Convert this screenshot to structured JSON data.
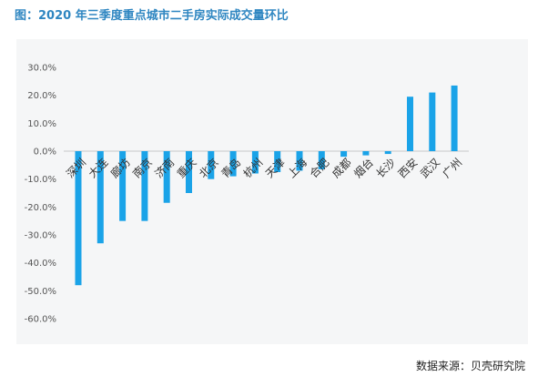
{
  "title": "图：2020 年三季度重点城市二手房实际成交量环比",
  "source": "数据来源：贝壳研究院",
  "colors": {
    "bar": "#1aa3e8",
    "title": "#2e86c1"
  },
  "chart_data": {
    "type": "bar",
    "title": "图：2020 年三季度重点城市二手房实际成交量环比",
    "categories": [
      "深圳",
      "大连",
      "廊坊",
      "南京",
      "济南",
      "重庆",
      "北京",
      "青岛",
      "杭州",
      "天津",
      "上海",
      "合肥",
      "成都",
      "烟台",
      "长沙",
      "西安",
      "武汉",
      "广州"
    ],
    "values": [
      -48,
      -33,
      -25,
      -25,
      -18.5,
      -15,
      -10,
      -9,
      -8,
      -7.5,
      -7,
      -6.5,
      -2,
      -1.5,
      -1,
      19.5,
      21,
      23.5
    ],
    "ylim": [
      -60,
      30
    ],
    "yticks": [
      "30.0%",
      "20.0%",
      "10.0%",
      "0.0%",
      "-10.0%",
      "-20.0%",
      "-30.0%",
      "-40.0%",
      "-50.0%",
      "-60.0%"
    ],
    "ytick_values": [
      30,
      20,
      10,
      0,
      -10,
      -20,
      -30,
      -40,
      -50,
      -60
    ],
    "xlabel": "",
    "ylabel": "",
    "grid": false
  }
}
